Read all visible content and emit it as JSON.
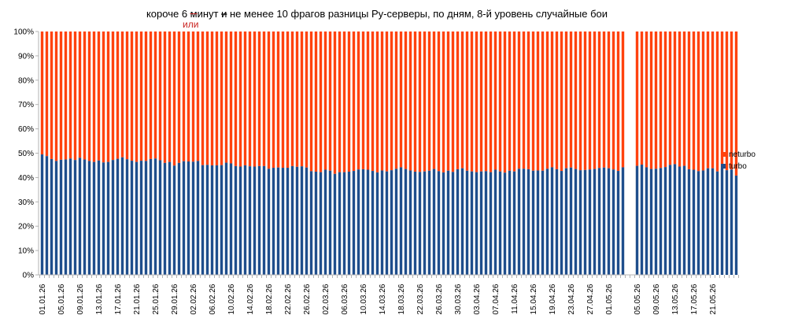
{
  "chart_data": {
    "type": "bar",
    "stacked": "percent",
    "title_parts": {
      "before": "короче 6 минут ",
      "struck": "и",
      "after": " не менее 10 фрагов разницы Ру-серверы, по дням, 8-й уровень случайные бои",
      "inserted": "или"
    },
    "y_ticks": [
      "0%",
      "10%",
      "20%",
      "30%",
      "40%",
      "50%",
      "60%",
      "70%",
      "80%",
      "90%",
      "100%"
    ],
    "ylim": [
      0,
      100
    ],
    "grid": false,
    "legend_position": "right",
    "x_tick_labels": [
      "01.01.26",
      "05.01.26",
      "09.01.26",
      "13.01.26",
      "17.01.26",
      "21.01.26",
      "25.01.26",
      "29.01.26",
      "02.02.26",
      "06.02.26",
      "10.02.26",
      "14.02.26",
      "18.02.26",
      "22.02.26",
      "26.02.26",
      "02.03.26",
      "06.03.26",
      "10.03.26",
      "14.03.26",
      "18.03.26",
      "22.03.26",
      "26.03.26",
      "30.03.26",
      "03.04.26",
      "07.04.26",
      "11.04.26",
      "15.04.26",
      "19.04.26",
      "23.04.26",
      "27.04.26",
      "01.05.26",
      "05.05.26",
      "09.05.26",
      "13.05.26",
      "17.05.26",
      "21.05.26"
    ],
    "series": [
      {
        "name": "turbo",
        "color": "#1f4e8c",
        "segments": [
          [
            49.5,
            48.8,
            47.6,
            46.8,
            47.3,
            47.4,
            47.8,
            47.2,
            48.1,
            47.4,
            46.8,
            46.4,
            47.0,
            46.2,
            46.4,
            47.2,
            47.7,
            48.3,
            47.5,
            46.9,
            46.4,
            46.9,
            46.8,
            47.6,
            47.8,
            47.1,
            46.0,
            46.4,
            44.9,
            46.0,
            46.7,
            46.6,
            46.5,
            46.8,
            45.1,
            45.2,
            45.0,
            45.0,
            45.1,
            46.1,
            45.8,
            44.7,
            44.5,
            45.0,
            44.6,
            44.5,
            44.7,
            44.7,
            43.6,
            44.0,
            44.1,
            44.0,
            44.0,
            44.7,
            44.4,
            44.6,
            44.1,
            42.6,
            42.4,
            42.2,
            43.2,
            42.8,
            41.5,
            42.2,
            42.2,
            42.4,
            42.7,
            43.3,
            43.4,
            43.2,
            42.7,
            42.1,
            42.9,
            42.5,
            43.0,
            43.6,
            44.2,
            43.5,
            42.9,
            42.4,
            42.3,
            42.5,
            42.8,
            43.5,
            42.6,
            42.1,
            42.8,
            42.3,
            43.4,
            43.8,
            42.8,
            42.5,
            42.2,
            42.5,
            42.6,
            42.2,
            43.2,
            42.5,
            42.0,
            42.8,
            42.5,
            43.6,
            43.6,
            43.4,
            42.8,
            42.9,
            42.8,
            43.6,
            44.2,
            43.4,
            42.7,
            43.8,
            44.1,
            43.5,
            43.0,
            43.1,
            43.3,
            43.5,
            43.9,
            44.1,
            43.8,
            43.3,
            42.7,
            44.2
          ],
          [
            44.8,
            45.3,
            44.2,
            43.5,
            43.6,
            43.9,
            44.3,
            45.2,
            45.5,
            44.5,
            44.8,
            43.4,
            43.2,
            42.6,
            42.9,
            43.8,
            43.8,
            42.5,
            43.7,
            43.0,
            43.3,
            40.8
          ]
        ]
      },
      {
        "name": "neturbo",
        "color": "#ff420e"
      }
    ]
  }
}
